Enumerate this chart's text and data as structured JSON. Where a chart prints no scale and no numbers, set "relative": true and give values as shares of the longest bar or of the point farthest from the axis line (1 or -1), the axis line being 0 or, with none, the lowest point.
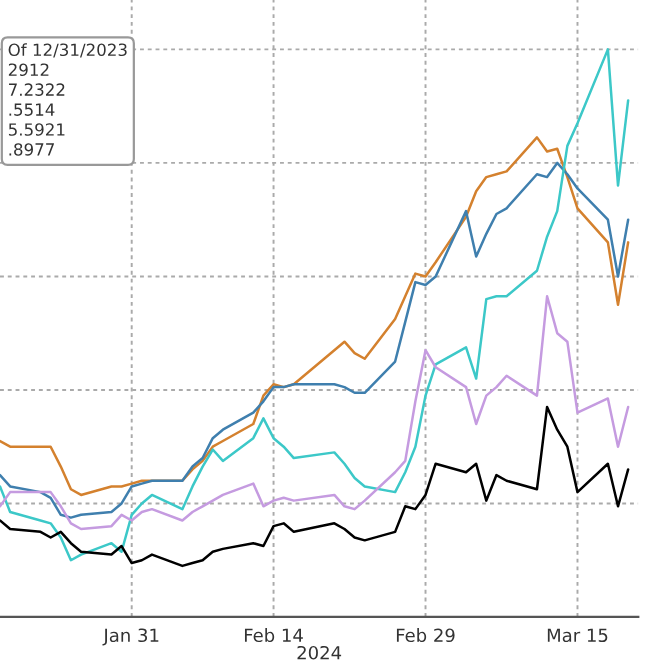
{
  "chart_data": {
    "type": "line",
    "relative": true,
    "x": [
      "2024-01-18",
      "2024-01-19",
      "2024-01-22",
      "2024-01-23",
      "2024-01-24",
      "2024-01-25",
      "2024-01-26",
      "2024-01-29",
      "2024-01-30",
      "2024-01-31",
      "2024-02-01",
      "2024-02-02",
      "2024-02-05",
      "2024-02-06",
      "2024-02-07",
      "2024-02-08",
      "2024-02-09",
      "2024-02-12",
      "2024-02-13",
      "2024-02-14",
      "2024-02-15",
      "2024-02-16",
      "2024-02-20",
      "2024-02-21",
      "2024-02-22",
      "2024-02-23",
      "2024-02-26",
      "2024-02-27",
      "2024-02-28",
      "2024-02-29",
      "2024-03-01",
      "2024-03-04",
      "2024-03-05",
      "2024-03-06",
      "2024-03-07",
      "2024-03-08",
      "2024-03-11",
      "2024-03-12",
      "2024-03-13",
      "2024-03-14",
      "2024-03-15",
      "2024-03-18",
      "2024-03-19",
      "2024-03-20"
    ],
    "series": [
      {
        "color": "#d4812e",
        "values": [
          0.31,
          0.3,
          0.3,
          0.3,
          0.265,
          0.225,
          0.215,
          0.23,
          0.23,
          0.235,
          0.24,
          0.24,
          0.24,
          0.26,
          0.275,
          0.3,
          0.31,
          0.34,
          0.39,
          0.41,
          0.405,
          0.41,
          0.47,
          0.485,
          0.465,
          0.455,
          0.525,
          0.565,
          0.605,
          0.6,
          0.625,
          0.705,
          0.75,
          0.775,
          0.78,
          0.785,
          0.845,
          0.82,
          0.825,
          0.775,
          0.72,
          0.66,
          0.55,
          0.66
        ]
      },
      {
        "color": "#3f7fae",
        "values": [
          0.25,
          0.23,
          0.22,
          0.21,
          0.18,
          0.175,
          0.18,
          0.185,
          0.2,
          0.23,
          0.235,
          0.24,
          0.24,
          0.265,
          0.28,
          0.315,
          0.33,
          0.36,
          0.38,
          0.405,
          0.405,
          0.41,
          0.41,
          0.405,
          0.395,
          0.395,
          0.45,
          0.52,
          0.59,
          0.585,
          0.6,
          0.715,
          0.635,
          0.675,
          0.71,
          0.72,
          0.78,
          0.775,
          0.8,
          0.78,
          0.755,
          0.7,
          0.6,
          0.7
        ]
      },
      {
        "color": "#3cc8c8",
        "values": [
          0.23,
          0.185,
          0.17,
          0.165,
          0.14,
          0.1,
          0.11,
          0.13,
          0.115,
          0.18,
          0.2,
          0.215,
          0.19,
          0.23,
          0.265,
          0.295,
          0.275,
          0.315,
          0.35,
          0.315,
          0.3,
          0.28,
          0.29,
          0.27,
          0.245,
          0.23,
          0.22,
          0.255,
          0.3,
          0.39,
          0.445,
          0.475,
          0.42,
          0.56,
          0.565,
          0.565,
          0.61,
          0.67,
          0.715,
          0.83,
          0.87,
          1.0,
          0.76,
          0.91
        ]
      },
      {
        "color": "#c59be0",
        "values": [
          0.195,
          0.22,
          0.22,
          0.22,
          0.195,
          0.165,
          0.155,
          0.16,
          0.18,
          0.17,
          0.185,
          0.19,
          0.17,
          0.185,
          0.195,
          0.205,
          0.215,
          0.235,
          0.195,
          0.205,
          0.21,
          0.205,
          0.215,
          0.195,
          0.19,
          0.205,
          0.255,
          0.275,
          0.38,
          0.47,
          0.44,
          0.405,
          0.34,
          0.39,
          0.405,
          0.425,
          0.39,
          0.565,
          0.5,
          0.485,
          0.36,
          0.385,
          0.3,
          0.37
        ]
      },
      {
        "color": "#000000",
        "values": [
          0.17,
          0.155,
          0.15,
          0.14,
          0.15,
          0.13,
          0.115,
          0.11,
          0.125,
          0.095,
          0.1,
          0.11,
          0.09,
          0.095,
          0.1,
          0.115,
          0.12,
          0.13,
          0.125,
          0.16,
          0.165,
          0.15,
          0.165,
          0.155,
          0.14,
          0.135,
          0.15,
          0.195,
          0.19,
          0.215,
          0.27,
          0.255,
          0.27,
          0.205,
          0.25,
          0.24,
          0.225,
          0.37,
          0.33,
          0.3,
          0.22,
          0.27,
          0.195,
          0.26
        ]
      }
    ],
    "xlim": [
      "2024-01-18",
      "2024-03-21"
    ],
    "xticks": [
      {
        "value": "2024-01-31",
        "label": "Jan 31"
      },
      {
        "value": "2024-02-14",
        "label": "Feb 14"
      },
      {
        "value": "2024-02-29",
        "label": "Feb 29"
      },
      {
        "value": "2024-03-15",
        "label": "Mar 15"
      }
    ],
    "xlabel": "2024",
    "grid": true,
    "legend": false,
    "tick_labels": "x",
    "annotations": [
      "Of 12/31/2023",
      "2912",
      "7.2322",
      ".5514",
      "5.5921",
      ".8977"
    ]
  }
}
